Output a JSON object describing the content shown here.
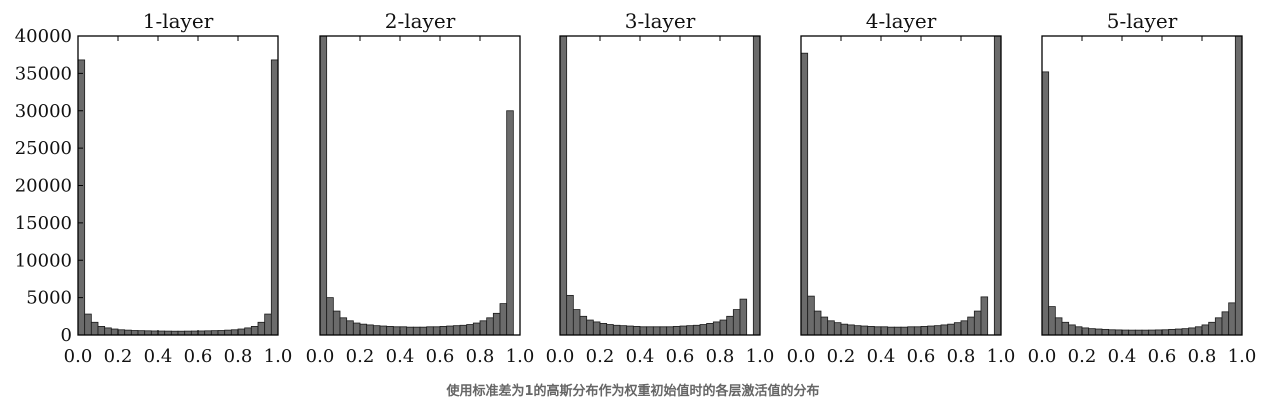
{
  "caption": "使用标准差为1的高斯分布作为权重初始值时的各层激活值的分布",
  "colors": {
    "bar_fill": "#6b6b6b",
    "bar_stroke": "#1a1a1a",
    "axis": "#000000"
  },
  "chart_data": [
    {
      "type": "bar",
      "title": "1-layer",
      "xlim": [
        0,
        1
      ],
      "ylim": [
        0,
        40000
      ],
      "xticks": [
        "0.0",
        "0.2",
        "0.4",
        "0.6",
        "0.8",
        "1.0"
      ],
      "yticks": [
        "0",
        "5000",
        "10000",
        "15000",
        "20000",
        "25000",
        "30000",
        "35000",
        "40000"
      ],
      "bins": 30,
      "values": [
        36800,
        2800,
        1700,
        1150,
        950,
        800,
        700,
        650,
        600,
        580,
        560,
        540,
        530,
        520,
        510,
        510,
        520,
        530,
        540,
        560,
        580,
        600,
        650,
        700,
        800,
        950,
        1150,
        1700,
        2800,
        36800
      ]
    },
    {
      "type": "bar",
      "title": "2-layer",
      "xlim": [
        0,
        1
      ],
      "ylim": [
        0,
        40000
      ],
      "xticks": [
        "0.0",
        "0.2",
        "0.4",
        "0.6",
        "0.8",
        "1.0"
      ],
      "yticks": [],
      "bins": 30,
      "values": [
        40000,
        5000,
        3200,
        2300,
        1900,
        1600,
        1450,
        1350,
        1250,
        1200,
        1150,
        1100,
        1100,
        1050,
        1050,
        1050,
        1100,
        1100,
        1150,
        1200,
        1250,
        1300,
        1400,
        1600,
        1900,
        2300,
        2900,
        4200,
        30000,
        0
      ]
    },
    {
      "type": "bar",
      "title": "3-layer",
      "xlim": [
        0,
        1
      ],
      "ylim": [
        0,
        40000
      ],
      "xticks": [
        "0.0",
        "0.2",
        "0.4",
        "0.6",
        "0.8",
        "1.0"
      ],
      "yticks": [],
      "bins": 30,
      "values": [
        40000,
        5300,
        3400,
        2500,
        2000,
        1750,
        1550,
        1400,
        1300,
        1250,
        1200,
        1150,
        1100,
        1100,
        1100,
        1100,
        1100,
        1150,
        1200,
        1250,
        1300,
        1400,
        1550,
        1750,
        2000,
        2500,
        3400,
        4800,
        0,
        40000
      ]
    },
    {
      "type": "bar",
      "title": "4-layer",
      "xlim": [
        0,
        1
      ],
      "ylim": [
        0,
        40000
      ],
      "xticks": [
        "0.0",
        "0.2",
        "0.4",
        "0.6",
        "0.8",
        "1.0"
      ],
      "yticks": [],
      "bins": 30,
      "values": [
        37700,
        5200,
        3200,
        2400,
        1900,
        1650,
        1450,
        1350,
        1250,
        1200,
        1150,
        1100,
        1100,
        1050,
        1050,
        1050,
        1100,
        1100,
        1150,
        1200,
        1250,
        1350,
        1450,
        1650,
        1900,
        2400,
        3200,
        5100,
        0,
        40000
      ]
    },
    {
      "type": "bar",
      "title": "5-layer",
      "xlim": [
        0,
        1
      ],
      "ylim": [
        0,
        40000
      ],
      "xticks": [
        "0.0",
        "0.2",
        "0.4",
        "0.6",
        "0.8",
        "1.0"
      ],
      "yticks": [],
      "bins": 30,
      "values": [
        35200,
        3800,
        2300,
        1700,
        1350,
        1100,
        950,
        850,
        800,
        750,
        700,
        680,
        660,
        650,
        650,
        650,
        660,
        680,
        700,
        750,
        800,
        850,
        950,
        1100,
        1350,
        1700,
        2300,
        3100,
        4300,
        40000
      ]
    }
  ]
}
